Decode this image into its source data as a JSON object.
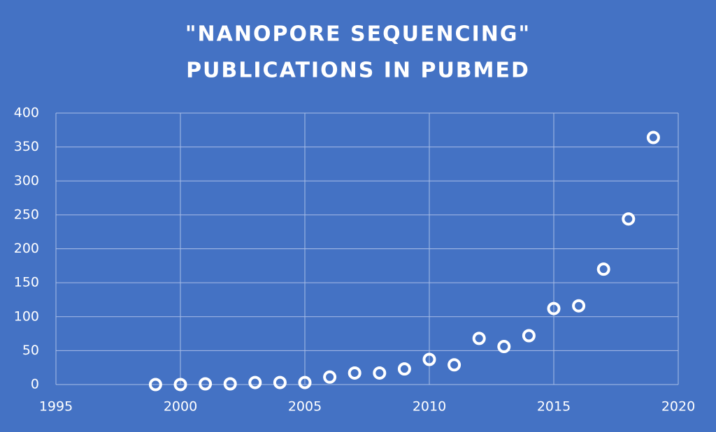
{
  "chart_data": {
    "type": "scatter",
    "title": [
      "\"NANOPORE SEQUENCING\"",
      "PUBLICATIONS IN PUBMED"
    ],
    "x": [
      1999,
      2000,
      2001,
      2002,
      2003,
      2004,
      2005,
      2006,
      2007,
      2008,
      2009,
      2010,
      2011,
      2012,
      2013,
      2014,
      2015,
      2016,
      2017,
      2018,
      2019
    ],
    "values": [
      0,
      0,
      1,
      1,
      3,
      3,
      3,
      11,
      17,
      17,
      23,
      37,
      29,
      68,
      56,
      72,
      112,
      116,
      170,
      244,
      364
    ],
    "color": "#ffffff",
    "xlim": [
      1995,
      2020
    ],
    "xticks": [
      1995,
      2000,
      2005,
      2010,
      2015,
      2020
    ],
    "ylim": [
      0,
      400
    ],
    "yticks": [
      0,
      50,
      100,
      150,
      200,
      250,
      300,
      350,
      400
    ],
    "grid": true
  }
}
